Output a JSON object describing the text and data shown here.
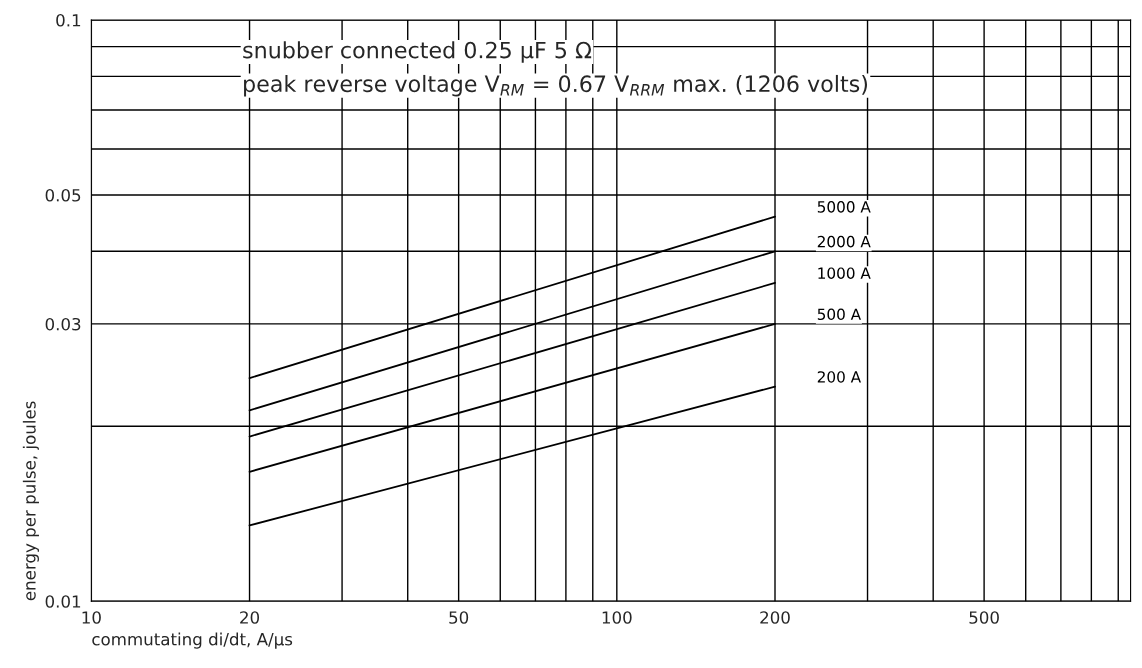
{
  "chart_data": {
    "type": "line",
    "xlabel": "commutating di/dt, A/μs",
    "ylabel": "energy per pulse, joules",
    "log": "xy",
    "grid": true,
    "legend": false,
    "marker": "none",
    "line_style": "solid",
    "xlim": [
      10,
      950
    ],
    "ylim": [
      0.01,
      0.1
    ],
    "xticks": [
      10,
      20,
      {
        "value": 30,
        "label": null
      },
      {
        "value": 40,
        "label": null
      },
      50,
      {
        "value": 60,
        "label": null
      },
      {
        "value": 70,
        "label": null
      },
      {
        "value": 80,
        "label": null
      },
      {
        "value": 90,
        "label": null
      },
      100,
      200,
      {
        "value": 300,
        "label": null
      },
      {
        "value": 400,
        "label": null
      },
      500,
      {
        "value": 600,
        "label": null
      },
      {
        "value": 700,
        "label": null
      },
      {
        "value": 800,
        "label": null
      },
      {
        "value": 900,
        "label": null
      }
    ],
    "yticks": [
      0.01,
      {
        "value": 0.02,
        "label": null
      },
      0.03,
      {
        "value": 0.04,
        "label": null
      },
      0.05,
      {
        "value": 0.06,
        "label": null
      },
      {
        "value": 0.07,
        "label": null
      },
      {
        "value": 0.08,
        "label": null
      },
      {
        "value": 0.09,
        "label": null
      },
      0.1
    ],
    "x": [
      20,
      200
    ],
    "series": [
      {
        "name": "5000 A",
        "color": "#000000",
        "values": [
          0.0242,
          0.0459
        ]
      },
      {
        "name": "2000 A",
        "color": "#000000",
        "values": [
          0.0213,
          0.04
        ]
      },
      {
        "name": "1000 A",
        "color": "#000000",
        "values": [
          0.0192,
          0.0353
        ]
      },
      {
        "name": "500 A",
        "color": "#000000",
        "values": [
          0.0167,
          0.03
        ]
      },
      {
        "name": "200 A",
        "color": "#000000",
        "values": [
          0.0135,
          0.0234
        ]
      }
    ],
    "annotations": [
      "snubber connected 0.25 μF 5 Ω",
      "peak reverse voltage V$_{RM}$ = 0.67 V$_{RRM}$ max. (1206 volts)"
    ]
  }
}
